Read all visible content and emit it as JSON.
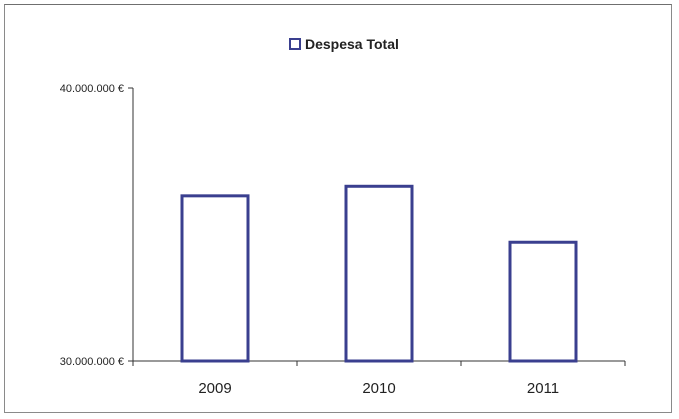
{
  "chart_data": {
    "type": "bar",
    "categories": [
      "2009",
      "2010",
      "2011"
    ],
    "series": [
      {
        "name": "Despesa Total",
        "values": [
          36050000,
          36400000,
          34350000
        ]
      }
    ],
    "ylim": [
      30000000,
      40000000
    ],
    "yticks": [
      30000000,
      40000000
    ],
    "ytick_labels": [
      "30.000.000 €",
      "40.000.000 €"
    ],
    "legend_position": "top-center",
    "grid": false,
    "bar_fill": "#ffffff",
    "bar_stroke": "#3a3f8f"
  }
}
